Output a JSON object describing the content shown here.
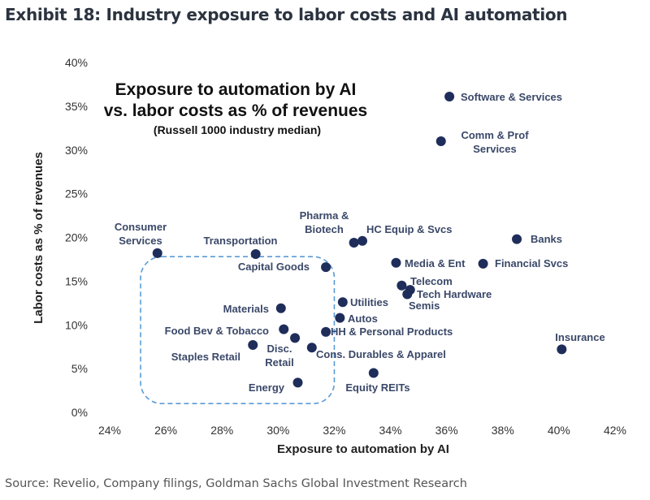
{
  "header": {
    "exhibit": "Exhibit 18: Industry exposure to labor costs and AI automation"
  },
  "footer": {
    "source": "Source: Revelio, Company filings, Goldman Sachs Global Investment Research"
  },
  "chart_data": {
    "type": "scatter",
    "title": "Exposure to automation by AI",
    "title_line2": "vs. labor costs as % of revenues",
    "subtitle": "(Russell 1000 industry median)",
    "xlabel": "Exposure to automation by AI",
    "ylabel": "Labor costs as % of revenues",
    "xlim": [
      24,
      42
    ],
    "ylim": [
      0,
      40
    ],
    "x_ticks": [
      "24%",
      "26%",
      "28%",
      "30%",
      "32%",
      "34%",
      "36%",
      "38%",
      "40%",
      "42%"
    ],
    "y_ticks": [
      "0%",
      "5%",
      "10%",
      "15%",
      "20%",
      "25%",
      "30%",
      "35%",
      "40%"
    ],
    "grid": false,
    "colors": {
      "point": "#1f2d5a",
      "highlight_box": "#5b9bd5"
    },
    "highlight_box": {
      "x": [
        25.1,
        32.0
      ],
      "y": [
        1.0,
        17.8
      ]
    },
    "points": [
      {
        "label": "Software & Services",
        "x": 36.1,
        "y": 36.1
      },
      {
        "label": "Comm & Prof Services",
        "x": 35.8,
        "y": 31.0
      },
      {
        "label": "Banks",
        "x": 38.5,
        "y": 19.8
      },
      {
        "label": "Financial Svcs",
        "x": 37.3,
        "y": 17.0
      },
      {
        "label": "Pharma & Biotech",
        "x": 32.7,
        "y": 19.4
      },
      {
        "label": "HC Equip & Svcs",
        "x": 33.0,
        "y": 19.6
      },
      {
        "label": "Media & Ent",
        "x": 34.2,
        "y": 17.1
      },
      {
        "label": "Telecom",
        "x": 34.4,
        "y": 14.5
      },
      {
        "label": "Tech Hardware",
        "x": 34.7,
        "y": 14.0
      },
      {
        "label": "Semis",
        "x": 34.6,
        "y": 13.5
      },
      {
        "label": "Utilities",
        "x": 32.3,
        "y": 12.6
      },
      {
        "label": "Autos",
        "x": 32.2,
        "y": 10.8
      },
      {
        "label": "HH & Personal Products",
        "x": 31.7,
        "y": 9.2
      },
      {
        "label": "Cons. Durables & Apparel",
        "x": 31.2,
        "y": 7.4
      },
      {
        "label": "Disc. Retail",
        "x": 30.6,
        "y": 8.5
      },
      {
        "label": "Food Bev & Tobacco",
        "x": 30.2,
        "y": 9.5
      },
      {
        "label": "Materials",
        "x": 30.1,
        "y": 11.9
      },
      {
        "label": "Staples Retail",
        "x": 29.1,
        "y": 7.7
      },
      {
        "label": "Energy",
        "x": 30.7,
        "y": 3.4
      },
      {
        "label": "Equity REITs",
        "x": 33.4,
        "y": 4.5
      },
      {
        "label": "Capital Goods",
        "x": 31.7,
        "y": 16.6
      },
      {
        "label": "Transportation",
        "x": 29.2,
        "y": 18.1
      },
      {
        "label": "Consumer Services",
        "x": 25.7,
        "y": 18.2
      },
      {
        "label": "Insurance",
        "x": 40.1,
        "y": 7.2
      }
    ]
  }
}
